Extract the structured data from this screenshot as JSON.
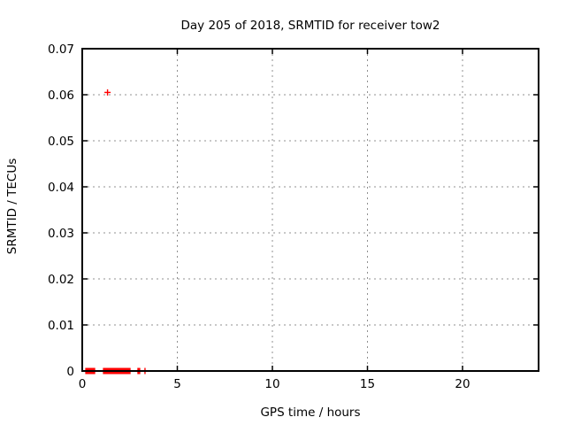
{
  "page": {
    "background": "#ffffff"
  },
  "chart_data": {
    "type": "scatter",
    "title": "Day 205 of 2018, SRMTID for receiver tow2",
    "xlabel": "GPS time / hours",
    "ylabel": "SRMTID / TECUs",
    "xlim": [
      0,
      24
    ],
    "ylim": [
      0,
      0.07
    ],
    "xticks": [
      0,
      5,
      10,
      15,
      20
    ],
    "xtick_labels": [
      "0",
      "5",
      "10",
      "15",
      "20"
    ],
    "yticks": [
      0,
      0.01,
      0.02,
      0.03,
      0.04,
      0.05,
      0.06,
      0.07
    ],
    "ytick_labels": [
      "0",
      "0.01",
      "0.02",
      "0.03",
      "0.04",
      "0.05",
      "0.06",
      "0.07"
    ],
    "grid": true,
    "grid_style": "dotted",
    "legend": "none",
    "marker": "plus",
    "colors": {
      "marker": "#ff0000",
      "grid": "#909090",
      "border": "#000000",
      "text": "#000000",
      "background": "#ffffff"
    },
    "series": [
      {
        "name": "SRMTID",
        "points": [
          [
            0.19,
            0
          ],
          [
            0.23,
            0
          ],
          [
            0.27,
            0
          ],
          [
            0.31,
            0
          ],
          [
            0.35,
            0
          ],
          [
            0.39,
            0
          ],
          [
            0.43,
            0
          ],
          [
            0.47,
            0
          ],
          [
            0.51,
            0
          ],
          [
            0.55,
            0
          ],
          [
            0.59,
            0
          ],
          [
            0.63,
            0
          ],
          [
            0.65,
            0
          ],
          [
            1.12,
            0
          ],
          [
            1.16,
            0
          ],
          [
            1.2,
            0
          ],
          [
            1.24,
            0
          ],
          [
            1.28,
            0
          ],
          [
            1.32,
            0
          ],
          [
            1.36,
            0
          ],
          [
            1.4,
            0
          ],
          [
            1.44,
            0
          ],
          [
            1.48,
            0
          ],
          [
            1.52,
            0
          ],
          [
            1.56,
            0
          ],
          [
            1.6,
            0
          ],
          [
            1.64,
            0
          ],
          [
            1.68,
            0
          ],
          [
            1.72,
            0
          ],
          [
            1.76,
            0
          ],
          [
            1.8,
            0
          ],
          [
            1.84,
            0
          ],
          [
            1.88,
            0
          ],
          [
            1.92,
            0
          ],
          [
            1.96,
            0
          ],
          [
            2.0,
            0
          ],
          [
            2.04,
            0
          ],
          [
            2.08,
            0
          ],
          [
            2.12,
            0
          ],
          [
            2.16,
            0
          ],
          [
            2.2,
            0
          ],
          [
            2.24,
            0
          ],
          [
            2.28,
            0
          ],
          [
            2.32,
            0
          ],
          [
            2.36,
            0
          ],
          [
            2.4,
            0
          ],
          [
            2.44,
            0
          ],
          [
            2.48,
            0
          ],
          [
            2.51,
            0
          ],
          [
            2.93,
            0
          ],
          [
            2.97,
            0
          ],
          [
            3.02,
            0
          ],
          [
            3.3,
            0
          ],
          [
            1.33,
            0.0605
          ]
        ]
      }
    ]
  }
}
